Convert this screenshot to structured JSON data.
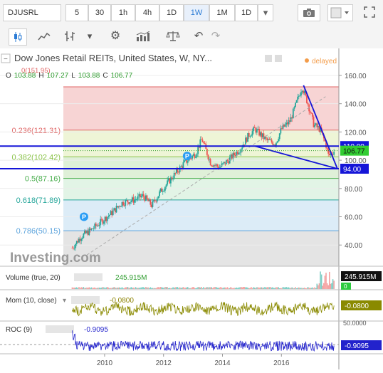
{
  "toolbar": {
    "symbol": "DJUSRL",
    "intervals": [
      "5",
      "30",
      "1h",
      "4h",
      "1D",
      "1W",
      "1M",
      "1D"
    ],
    "active_interval": "1W",
    "dropdown_icon": "chevron-down-icon",
    "camera_icon": "camera-icon",
    "fullscreen_icon": "expand-icon"
  },
  "legend": {
    "title": "Dow Jones Retail REITs, United States, W, NY...",
    "status": "delayed",
    "ohlc": {
      "o_label": "O",
      "o": "103.88",
      "h_label": "H",
      "h": "107.27",
      "l_label": "L",
      "l": "103.88",
      "c_label": "C",
      "c": "106.77"
    },
    "fib_zero_text": "0(151.95)"
  },
  "colors": {
    "bull": "#26a69a",
    "bear": "#ef5350",
    "trend": "#1515d8",
    "fib_text": "#e06666"
  },
  "chart_data": [
    {
      "type": "line",
      "title": "Dow Jones Retail REITs, United States, W, NY...",
      "x_ticks": [
        "2010",
        "2012",
        "2014",
        "2016"
      ],
      "y_ticks": [
        40,
        60,
        80,
        100,
        120,
        140,
        160
      ],
      "ylim": [
        30,
        163
      ],
      "x": [
        2008.9,
        2009.2,
        2009.5,
        2009.8,
        2010.2,
        2010.6,
        2011.0,
        2011.3,
        2011.6,
        2011.9,
        2012.3,
        2012.7,
        2013.1,
        2013.3,
        2013.6,
        2013.9,
        2014.2,
        2014.6,
        2014.9,
        2015.1,
        2015.5,
        2015.8,
        2016.0,
        2016.3,
        2016.5,
        2016.7,
        2016.9,
        2017.1,
        2017.3,
        2017.5,
        2017.6,
        2017.7,
        2017.8
      ],
      "series": [
        {
          "values": [
            38,
            46,
            50,
            55,
            62,
            70,
            72,
            75,
            68,
            78,
            88,
            98,
            105,
            115,
            98,
            95,
            100,
            108,
            118,
            122,
            114,
            112,
            122,
            128,
            140,
            152,
            140,
            125,
            122,
            112,
            103,
            105,
            106.77
          ]
        }
      ],
      "horizontal_lines": [
        {
          "label": "110.00",
          "value": 110.0
        },
        {
          "label": "94.00",
          "value": 94.0
        }
      ],
      "current_price_label": "106.77",
      "fibonacci": [
        {
          "ratio": "0",
          "value": 151.95,
          "label": "0(151.95)"
        },
        {
          "ratio": "0.236",
          "value": 121.31,
          "label": "0.236(121.31)"
        },
        {
          "ratio": "0.382",
          "value": 102.42,
          "label": "0.382(102.42)"
        },
        {
          "ratio": "0.5",
          "value": 87.16,
          "label": "0.5(87.16)"
        },
        {
          "ratio": "0.618",
          "value": 71.89,
          "label": "0.618(71.89)"
        },
        {
          "ratio": "0.786",
          "value": 50.15,
          "label": "0.786(50.15)"
        }
      ],
      "markers": [
        {
          "text": "P",
          "x": 2009.3,
          "value": 60
        },
        {
          "text": "P",
          "x": 2012.8,
          "value": 103
        }
      ],
      "grid": true,
      "watermark": "Investing.com"
    },
    {
      "type": "bar",
      "title": "Volume (true, 20)",
      "value_text": "245.915M",
      "axis_label": "245.915M",
      "axis_zero": "0"
    },
    {
      "type": "line",
      "title": "Mom (10, close)",
      "value_text": "-0.0800",
      "axis_label": "-0.0800"
    },
    {
      "type": "line",
      "title": "ROC (9)",
      "value_text": "-0.9095",
      "axis_label": "-0.9095",
      "y_ticks": [
        "50.0000"
      ]
    }
  ]
}
